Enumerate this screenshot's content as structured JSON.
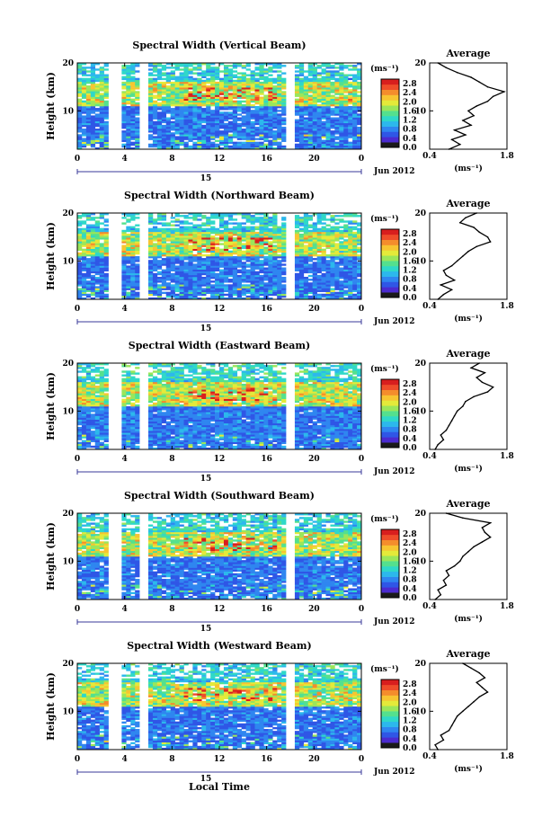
{
  "figure": {
    "xlabel": "Local Time",
    "colorbar_unit": "(ms⁻¹)",
    "colorbar_ticks": [
      "0.0",
      "0.4",
      "0.8",
      "1.2",
      "1.6",
      "2.0",
      "2.4",
      "2.8"
    ],
    "colorbar_range": [
      0.0,
      3.0
    ],
    "colors": [
      "#1a1a1a",
      "#4b2bd0",
      "#2f56e6",
      "#2f86f0",
      "#2cb8ec",
      "#2fd8c8",
      "#54e08e",
      "#9be65a",
      "#e4ea3a",
      "#f7c531",
      "#f48d2c",
      "#ef4d2a",
      "#d81e1e"
    ]
  },
  "chart_data": [
    {
      "type": "heatmap",
      "title": "Spectral Width (Vertical Beam)",
      "ylabel": "Height (km)",
      "xlim": [
        0,
        24
      ],
      "ylim": [
        2,
        20
      ],
      "x_ticks": [
        "0",
        "4",
        "8",
        "12",
        "16",
        "20",
        "0"
      ],
      "y_ticks": [
        "20",
        "10"
      ],
      "date_day": "15",
      "date_month": "Jun 2012",
      "data_gaps_hours": [
        [
          2.5,
          3.8
        ],
        [
          5.3,
          5.9
        ],
        [
          17.6,
          18.2
        ]
      ],
      "average": {
        "title": "Average",
        "xlabel": "(ms⁻¹)",
        "xlim": [
          0.4,
          1.8
        ],
        "ylim": [
          2,
          20
        ],
        "x_ticks": [
          "0.4",
          "1.8"
        ],
        "y_ticks": [
          "20",
          "10"
        ],
        "height_km": [
          2,
          3,
          4,
          5,
          6,
          7,
          8,
          9,
          10,
          11,
          12,
          13,
          14,
          15,
          16,
          17,
          18,
          19,
          20
        ],
        "width": [
          0.75,
          0.95,
          0.8,
          1.05,
          0.85,
          1.15,
          1.0,
          1.2,
          1.1,
          1.25,
          1.45,
          1.55,
          1.75,
          1.45,
          1.3,
          1.15,
          0.9,
          0.7,
          0.55
        ]
      }
    },
    {
      "type": "heatmap",
      "title": "Spectral Width (Northward Beam)",
      "ylabel": "Height (km)",
      "xlim": [
        0,
        24
      ],
      "ylim": [
        2,
        20
      ],
      "x_ticks": [
        "0",
        "4",
        "8",
        "12",
        "16",
        "20",
        "0"
      ],
      "y_ticks": [
        "20",
        "10"
      ],
      "date_day": "15",
      "date_month": "Jun 2012",
      "data_gaps_hours": [
        [
          2.5,
          3.8
        ],
        [
          5.3,
          5.9
        ],
        [
          17.6,
          18.2
        ]
      ],
      "average": {
        "title": "Average",
        "xlabel": "(ms⁻¹)",
        "xlim": [
          0.4,
          1.8
        ],
        "ylim": [
          2,
          20
        ],
        "x_ticks": [
          "0.4",
          "1.8"
        ],
        "y_ticks": [
          "20",
          "10"
        ],
        "height_km": [
          2,
          3,
          4,
          5,
          6,
          7,
          8,
          9,
          10,
          11,
          12,
          13,
          14,
          15,
          16,
          17,
          18,
          19,
          20
        ],
        "width": [
          0.55,
          0.65,
          0.8,
          0.6,
          0.85,
          0.7,
          0.65,
          0.8,
          0.9,
          1.0,
          1.1,
          1.25,
          1.5,
          1.45,
          1.3,
          1.2,
          0.95,
          1.05,
          1.25
        ]
      }
    },
    {
      "type": "heatmap",
      "title": "Spectral Width (Eastward Beam)",
      "ylabel": "Height (km)",
      "xlim": [
        0,
        24
      ],
      "ylim": [
        2,
        20
      ],
      "x_ticks": [
        "0",
        "4",
        "8",
        "12",
        "16",
        "20",
        "0"
      ],
      "y_ticks": [
        "20",
        "10"
      ],
      "date_day": "15",
      "date_month": "Jun 2012",
      "data_gaps_hours": [
        [
          2.5,
          3.8
        ],
        [
          5.3,
          5.9
        ],
        [
          17.6,
          18.2
        ]
      ],
      "average": {
        "title": "Average",
        "xlabel": "(ms⁻¹)",
        "xlim": [
          0.4,
          1.8
        ],
        "ylim": [
          2,
          20
        ],
        "x_ticks": [
          "0.4",
          "1.8"
        ],
        "y_ticks": [
          "20",
          "10"
        ],
        "height_km": [
          2,
          3,
          4,
          5,
          6,
          7,
          8,
          9,
          10,
          11,
          12,
          13,
          14,
          15,
          16,
          17,
          18,
          19,
          20
        ],
        "width": [
          0.5,
          0.55,
          0.65,
          0.6,
          0.7,
          0.75,
          0.8,
          0.85,
          0.9,
          1.0,
          1.05,
          1.2,
          1.45,
          1.55,
          1.35,
          1.25,
          1.4,
          1.15,
          1.3
        ]
      }
    },
    {
      "type": "heatmap",
      "title": "Spectral Width (Southward Beam)",
      "ylabel": "Height (km)",
      "xlim": [
        0,
        24
      ],
      "ylim": [
        2,
        20
      ],
      "x_ticks": [
        "0",
        "4",
        "8",
        "12",
        "16",
        "20",
        "0"
      ],
      "y_ticks": [
        "20",
        "10"
      ],
      "date_day": "15",
      "date_month": "Jun 2012",
      "data_gaps_hours": [
        [
          2.5,
          3.8
        ],
        [
          5.3,
          5.9
        ],
        [
          17.6,
          18.2
        ]
      ],
      "average": {
        "title": "Average",
        "xlabel": "(ms⁻¹)",
        "xlim": [
          0.4,
          1.8
        ],
        "ylim": [
          2,
          20
        ],
        "x_ticks": [
          "0.4",
          "1.8"
        ],
        "y_ticks": [
          "20",
          "10"
        ],
        "height_km": [
          2,
          3,
          4,
          5,
          6,
          7,
          8,
          9,
          10,
          11,
          12,
          13,
          14,
          15,
          16,
          17,
          18,
          19,
          20
        ],
        "width": [
          0.5,
          0.6,
          0.55,
          0.7,
          0.65,
          0.75,
          0.7,
          0.85,
          0.95,
          1.0,
          1.1,
          1.2,
          1.35,
          1.5,
          1.4,
          1.35,
          1.5,
          1.0,
          0.7
        ]
      }
    },
    {
      "type": "heatmap",
      "title": "Spectral Width (Westward Beam)",
      "ylabel": "Height (km)",
      "xlim": [
        0,
        24
      ],
      "ylim": [
        2,
        20
      ],
      "x_ticks": [
        "0",
        "4",
        "8",
        "12",
        "16",
        "20",
        "0"
      ],
      "y_ticks": [
        "20",
        "10"
      ],
      "date_day": "15",
      "date_month": "Jun 2012",
      "data_gaps_hours": [
        [
          2.5,
          3.8
        ],
        [
          5.3,
          5.9
        ],
        [
          17.6,
          18.2
        ]
      ],
      "average": {
        "title": "Average",
        "xlabel": "(ms⁻¹)",
        "xlim": [
          0.4,
          1.8
        ],
        "ylim": [
          2,
          20
        ],
        "x_ticks": [
          "0.4",
          "1.8"
        ],
        "y_ticks": [
          "20",
          "10"
        ],
        "height_km": [
          2,
          3,
          4,
          5,
          6,
          7,
          8,
          9,
          10,
          11,
          12,
          13,
          14,
          15,
          16,
          17,
          18,
          19,
          20
        ],
        "width": [
          0.55,
          0.5,
          0.65,
          0.6,
          0.75,
          0.8,
          0.85,
          0.9,
          1.0,
          1.1,
          1.2,
          1.3,
          1.45,
          1.35,
          1.25,
          1.4,
          1.3,
          1.15,
          1.0
        ]
      }
    }
  ]
}
